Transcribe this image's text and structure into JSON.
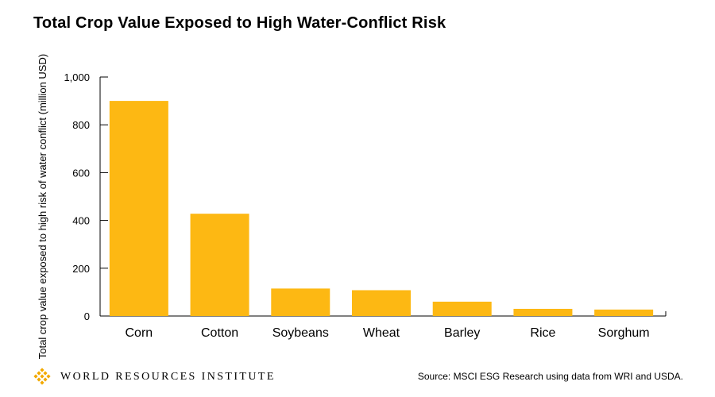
{
  "title": "Total Crop Value Exposed to High Water-Conflict Risk",
  "footer": {
    "organization": "WORLD RESOURCES INSTITUTE",
    "source": "Source: MSCI ESG Research using data from WRI and USDA."
  },
  "colors": {
    "bar": "#FDB813",
    "axis": "#000000",
    "logo": "#F2A900"
  },
  "chart_data": {
    "type": "bar",
    "title": "Total Crop Value Exposed to High Water-Conflict Risk",
    "xlabel": "",
    "ylabel": "Total crop value exposed to high risk of water conflict (million USD)",
    "categories": [
      "Corn",
      "Cotton",
      "Soybeans",
      "Wheat",
      "Barley",
      "Rice",
      "Sorghum"
    ],
    "values": [
      900,
      428,
      115,
      108,
      60,
      30,
      27
    ],
    "ylim": [
      0,
      1000
    ],
    "yticks": [
      0,
      200,
      400,
      600,
      800,
      1000
    ],
    "ytick_labels": [
      "0",
      "200",
      "400",
      "600",
      "800",
      "1,000"
    ],
    "grid": false,
    "legend": "none"
  }
}
